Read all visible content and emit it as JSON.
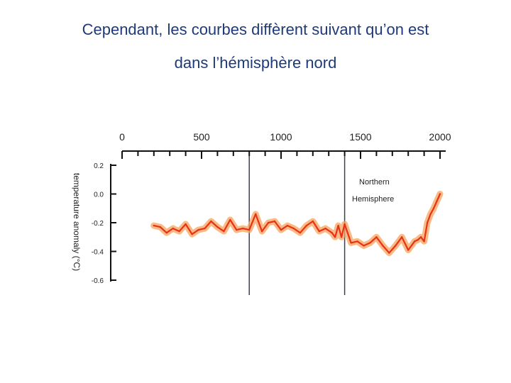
{
  "slide": {
    "title_line_1": "Cependant, les courbes diffèrent suivant qu’on est",
    "title_line_2": "dans l’hémisphère nord"
  },
  "chart_data": {
    "type": "line",
    "title": "",
    "xlabel": "",
    "ylabel": "temperature anomaly (°C)",
    "x_ticks": [
      "0",
      "500",
      "1000",
      "1500",
      "2000"
    ],
    "y_ticks": [
      "0.2",
      "0.0",
      "-0.2",
      "-0.4",
      "-0.6"
    ],
    "xlim": [
      0,
      2000
    ],
    "ylim": [
      -0.6,
      0.2
    ],
    "x_axis_position": "top",
    "vertical_reference_lines": [
      800,
      1400
    ],
    "annotation": "Northern Hemisphere",
    "annotation_lines": [
      "Northern",
      "Hemisphere"
    ],
    "series": [
      {
        "color": "#e8301a",
        "band_color": "#f7a35a",
        "x": [
          200,
          240,
          280,
          320,
          360,
          400,
          440,
          480,
          520,
          560,
          600,
          640,
          680,
          720,
          760,
          800,
          840,
          880,
          920,
          960,
          1000,
          1040,
          1080,
          1120,
          1160,
          1200,
          1240,
          1280,
          1320,
          1340,
          1360,
          1380,
          1400,
          1440,
          1480,
          1520,
          1560,
          1600,
          1640,
          1680,
          1720,
          1760,
          1800,
          1840,
          1860,
          1880,
          1900,
          1920,
          1940,
          1960,
          1980,
          2000
        ],
        "values": [
          -0.22,
          -0.23,
          -0.27,
          -0.24,
          -0.26,
          -0.21,
          -0.28,
          -0.25,
          -0.24,
          -0.19,
          -0.23,
          -0.26,
          -0.18,
          -0.25,
          -0.24,
          -0.25,
          -0.14,
          -0.26,
          -0.2,
          -0.19,
          -0.25,
          -0.22,
          -0.24,
          -0.27,
          -0.22,
          -0.19,
          -0.26,
          -0.24,
          -0.27,
          -0.3,
          -0.22,
          -0.3,
          -0.21,
          -0.34,
          -0.33,
          -0.36,
          -0.34,
          -0.3,
          -0.36,
          -0.41,
          -0.36,
          -0.3,
          -0.39,
          -0.33,
          -0.32,
          -0.3,
          -0.33,
          -0.2,
          -0.14,
          -0.1,
          -0.05,
          0.0
        ]
      }
    ]
  }
}
